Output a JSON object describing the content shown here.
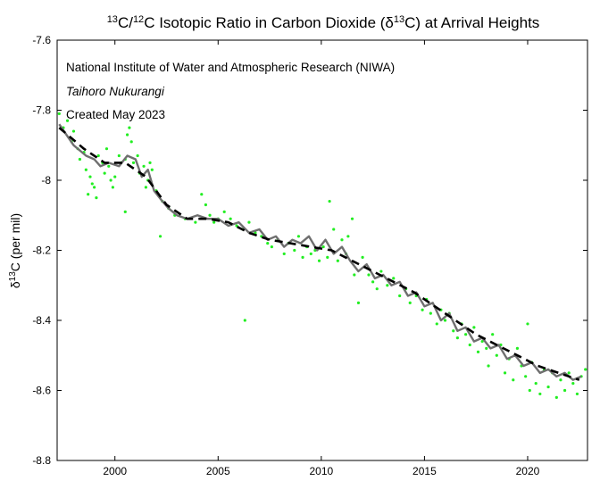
{
  "chart_data": {
    "type": "scatter",
    "title": {
      "sup1": "13",
      "mid1": "C/",
      "sup2": "12",
      "mid2": "C Isotopic Ratio in Carbon Dioxide (δ",
      "sup3": "13",
      "mid3": "C) at Arrival Heights"
    },
    "ylabel": {
      "pre": "δ",
      "sup": "13",
      "post": "C (per mil)"
    },
    "xlabel": "",
    "xlim": [
      1997.2,
      2022.9
    ],
    "ylim": [
      -8.8,
      -7.6
    ],
    "x_ticks": [
      2000,
      2005,
      2010,
      2015,
      2020
    ],
    "x_tick_labels": [
      "2000",
      "2005",
      "2010",
      "2015",
      "2020"
    ],
    "y_ticks": [
      -7.6,
      -7.8,
      -8.0,
      -8.2,
      -8.4,
      -8.6,
      -8.8
    ],
    "y_tick_labels": [
      "-7.6",
      "-7.8",
      "-8",
      "-8.2",
      "-8.4",
      "-8.6",
      "-8.8"
    ],
    "grid": false,
    "annotations": {
      "institute": "National Institute of Water and Atmospheric Research (NIWA)",
      "station": "Taihoro Nukurangi",
      "created": "Created May 2023"
    },
    "series": [
      {
        "style": "points",
        "color": "#22ee22",
        "points": [
          [
            1997.3,
            -7.81
          ],
          [
            1997.5,
            -7.85
          ],
          [
            1997.7,
            -7.83
          ],
          [
            1997.9,
            -7.89
          ],
          [
            1998.0,
            -7.86
          ],
          [
            1998.2,
            -7.91
          ],
          [
            1998.3,
            -7.94
          ],
          [
            1998.5,
            -7.92
          ],
          [
            1998.6,
            -7.97
          ],
          [
            1998.7,
            -8.04
          ],
          [
            1998.8,
            -7.99
          ],
          [
            1998.9,
            -8.01
          ],
          [
            1999.0,
            -8.02
          ],
          [
            1999.1,
            -8.05
          ],
          [
            1999.2,
            -7.93
          ],
          [
            1999.4,
            -7.95
          ],
          [
            1999.5,
            -7.98
          ],
          [
            1999.6,
            -7.91
          ],
          [
            1999.7,
            -7.96
          ],
          [
            1999.8,
            -8.0
          ],
          [
            1999.9,
            -8.02
          ],
          [
            2000.0,
            -7.99
          ],
          [
            2000.2,
            -7.93
          ],
          [
            2000.3,
            -7.95
          ],
          [
            2000.5,
            -7.94
          ],
          [
            2000.6,
            -7.87
          ],
          [
            2000.7,
            -7.85
          ],
          [
            2000.8,
            -7.89
          ],
          [
            2000.9,
            -7.95
          ],
          [
            2000.5,
            -8.09
          ],
          [
            2001.1,
            -7.93
          ],
          [
            2001.2,
            -7.98
          ],
          [
            2001.4,
            -7.96
          ],
          [
            2001.5,
            -8.02
          ],
          [
            2001.6,
            -8.0
          ],
          [
            2001.7,
            -7.95
          ],
          [
            2001.8,
            -7.97
          ],
          [
            2002.0,
            -8.03
          ],
          [
            2002.2,
            -8.16
          ],
          [
            2002.3,
            -8.06
          ],
          [
            2002.6,
            -8.08
          ],
          [
            2002.9,
            -8.1
          ],
          [
            2003.4,
            -8.11
          ],
          [
            2003.9,
            -8.12
          ],
          [
            2004.2,
            -8.04
          ],
          [
            2004.4,
            -8.07
          ],
          [
            2004.6,
            -8.1
          ],
          [
            2004.8,
            -8.12
          ],
          [
            2005.0,
            -8.11
          ],
          [
            2005.3,
            -8.09
          ],
          [
            2005.6,
            -8.11
          ],
          [
            2005.9,
            -8.13
          ],
          [
            2006.2,
            -8.14
          ],
          [
            2006.3,
            -8.4
          ],
          [
            2006.5,
            -8.12
          ],
          [
            2006.8,
            -8.15
          ],
          [
            2007.1,
            -8.16
          ],
          [
            2007.4,
            -8.18
          ],
          [
            2007.6,
            -8.19
          ],
          [
            2007.9,
            -8.17
          ],
          [
            2008.2,
            -8.21
          ],
          [
            2008.4,
            -8.18
          ],
          [
            2008.7,
            -8.2
          ],
          [
            2008.9,
            -8.16
          ],
          [
            2009.1,
            -8.22
          ],
          [
            2009.3,
            -8.19
          ],
          [
            2009.5,
            -8.21
          ],
          [
            2009.7,
            -8.2
          ],
          [
            2009.9,
            -8.23
          ],
          [
            2010.1,
            -8.19
          ],
          [
            2010.3,
            -8.22
          ],
          [
            2010.4,
            -8.06
          ],
          [
            2010.6,
            -8.14
          ],
          [
            2010.8,
            -8.23
          ],
          [
            2011.0,
            -8.17
          ],
          [
            2011.2,
            -8.21
          ],
          [
            2011.3,
            -8.16
          ],
          [
            2011.5,
            -8.11
          ],
          [
            2011.6,
            -8.27
          ],
          [
            2011.8,
            -8.35
          ],
          [
            2012.0,
            -8.22
          ],
          [
            2012.3,
            -8.27
          ],
          [
            2012.5,
            -8.29
          ],
          [
            2012.7,
            -8.31
          ],
          [
            2012.9,
            -8.26
          ],
          [
            2013.2,
            -8.3
          ],
          [
            2013.5,
            -8.28
          ],
          [
            2013.8,
            -8.33
          ],
          [
            2014.1,
            -8.31
          ],
          [
            2014.3,
            -8.35
          ],
          [
            2014.6,
            -8.33
          ],
          [
            2014.9,
            -8.37
          ],
          [
            2015.1,
            -8.34
          ],
          [
            2015.3,
            -8.38
          ],
          [
            2015.6,
            -8.41
          ],
          [
            2015.8,
            -8.37
          ],
          [
            2016.0,
            -8.4
          ],
          [
            2016.2,
            -8.38
          ],
          [
            2016.4,
            -8.43
          ],
          [
            2016.6,
            -8.45
          ],
          [
            2016.8,
            -8.41
          ],
          [
            2017.0,
            -8.44
          ],
          [
            2017.2,
            -8.47
          ],
          [
            2017.4,
            -8.42
          ],
          [
            2017.6,
            -8.49
          ],
          [
            2017.8,
            -8.46
          ],
          [
            2018.0,
            -8.48
          ],
          [
            2018.1,
            -8.53
          ],
          [
            2018.3,
            -8.44
          ],
          [
            2018.5,
            -8.5
          ],
          [
            2018.7,
            -8.47
          ],
          [
            2018.9,
            -8.55
          ],
          [
            2019.1,
            -8.51
          ],
          [
            2019.3,
            -8.57
          ],
          [
            2019.5,
            -8.48
          ],
          [
            2019.7,
            -8.53
          ],
          [
            2019.9,
            -8.56
          ],
          [
            2020.0,
            -8.41
          ],
          [
            2020.1,
            -8.6
          ],
          [
            2020.2,
            -8.52
          ],
          [
            2020.4,
            -8.58
          ],
          [
            2020.6,
            -8.61
          ],
          [
            2020.8,
            -8.54
          ],
          [
            2021.0,
            -8.59
          ],
          [
            2021.2,
            -8.55
          ],
          [
            2021.4,
            -8.62
          ],
          [
            2021.6,
            -8.57
          ],
          [
            2021.8,
            -8.6
          ],
          [
            2022.0,
            -8.55
          ],
          [
            2022.2,
            -8.58
          ],
          [
            2022.4,
            -8.61
          ],
          [
            2022.6,
            -8.56
          ],
          [
            2022.8,
            -8.54
          ]
        ]
      },
      {
        "style": "line",
        "color": "#6f6f6f",
        "points": [
          [
            1997.3,
            -7.84
          ],
          [
            1998.0,
            -7.9
          ],
          [
            1998.6,
            -7.93
          ],
          [
            1999.0,
            -7.94
          ],
          [
            1999.3,
            -7.96
          ],
          [
            1999.7,
            -7.95
          ],
          [
            2000.2,
            -7.96
          ],
          [
            2000.6,
            -7.93
          ],
          [
            2001.0,
            -7.94
          ],
          [
            2001.3,
            -7.99
          ],
          [
            2001.6,
            -7.97
          ],
          [
            2001.9,
            -8.03
          ],
          [
            2002.3,
            -8.06
          ],
          [
            2002.6,
            -8.08
          ],
          [
            2003.0,
            -8.1
          ],
          [
            2003.5,
            -8.11
          ],
          [
            2004.0,
            -8.1
          ],
          [
            2004.5,
            -8.11
          ],
          [
            2005.0,
            -8.11
          ],
          [
            2005.5,
            -8.13
          ],
          [
            2006.0,
            -8.12
          ],
          [
            2006.5,
            -8.15
          ],
          [
            2007.0,
            -8.14
          ],
          [
            2007.4,
            -8.17
          ],
          [
            2007.8,
            -8.16
          ],
          [
            2008.2,
            -8.19
          ],
          [
            2008.6,
            -8.17
          ],
          [
            2009.0,
            -8.18
          ],
          [
            2009.4,
            -8.16
          ],
          [
            2009.8,
            -8.2
          ],
          [
            2010.2,
            -8.17
          ],
          [
            2010.6,
            -8.21
          ],
          [
            2011.0,
            -8.19
          ],
          [
            2011.4,
            -8.23
          ],
          [
            2011.8,
            -8.26
          ],
          [
            2012.2,
            -8.24
          ],
          [
            2012.6,
            -8.28
          ],
          [
            2013.0,
            -8.27
          ],
          [
            2013.4,
            -8.3
          ],
          [
            2013.8,
            -8.29
          ],
          [
            2014.2,
            -8.33
          ],
          [
            2014.6,
            -8.32
          ],
          [
            2015.0,
            -8.36
          ],
          [
            2015.4,
            -8.35
          ],
          [
            2015.8,
            -8.4
          ],
          [
            2016.2,
            -8.38
          ],
          [
            2016.6,
            -8.43
          ],
          [
            2017.0,
            -8.42
          ],
          [
            2017.4,
            -8.46
          ],
          [
            2017.8,
            -8.45
          ],
          [
            2018.2,
            -8.48
          ],
          [
            2018.6,
            -8.47
          ],
          [
            2019.0,
            -8.51
          ],
          [
            2019.4,
            -8.5
          ],
          [
            2019.8,
            -8.53
          ],
          [
            2020.2,
            -8.52
          ],
          [
            2020.6,
            -8.55
          ],
          [
            2021.0,
            -8.54
          ],
          [
            2021.4,
            -8.56
          ],
          [
            2021.8,
            -8.55
          ],
          [
            2022.2,
            -8.57
          ],
          [
            2022.6,
            -8.56
          ]
        ]
      },
      {
        "style": "dashed",
        "color": "#000000",
        "points": [
          [
            1997.3,
            -7.85
          ],
          [
            1998.5,
            -7.91
          ],
          [
            1999.5,
            -7.95
          ],
          [
            2000.5,
            -7.95
          ],
          [
            2001.5,
            -7.99
          ],
          [
            2002.5,
            -8.07
          ],
          [
            2003.5,
            -8.11
          ],
          [
            2004.5,
            -8.11
          ],
          [
            2005.5,
            -8.12
          ],
          [
            2006.5,
            -8.15
          ],
          [
            2007.5,
            -8.17
          ],
          [
            2008.5,
            -8.18
          ],
          [
            2009.5,
            -8.19
          ],
          [
            2010.5,
            -8.2
          ],
          [
            2011.5,
            -8.23
          ],
          [
            2012.5,
            -8.26
          ],
          [
            2013.5,
            -8.29
          ],
          [
            2014.5,
            -8.32
          ],
          [
            2015.5,
            -8.36
          ],
          [
            2016.5,
            -8.4
          ],
          [
            2017.5,
            -8.44
          ],
          [
            2018.5,
            -8.47
          ],
          [
            2019.5,
            -8.5
          ],
          [
            2020.5,
            -8.53
          ],
          [
            2021.5,
            -8.55
          ],
          [
            2022.5,
            -8.57
          ]
        ]
      }
    ]
  }
}
